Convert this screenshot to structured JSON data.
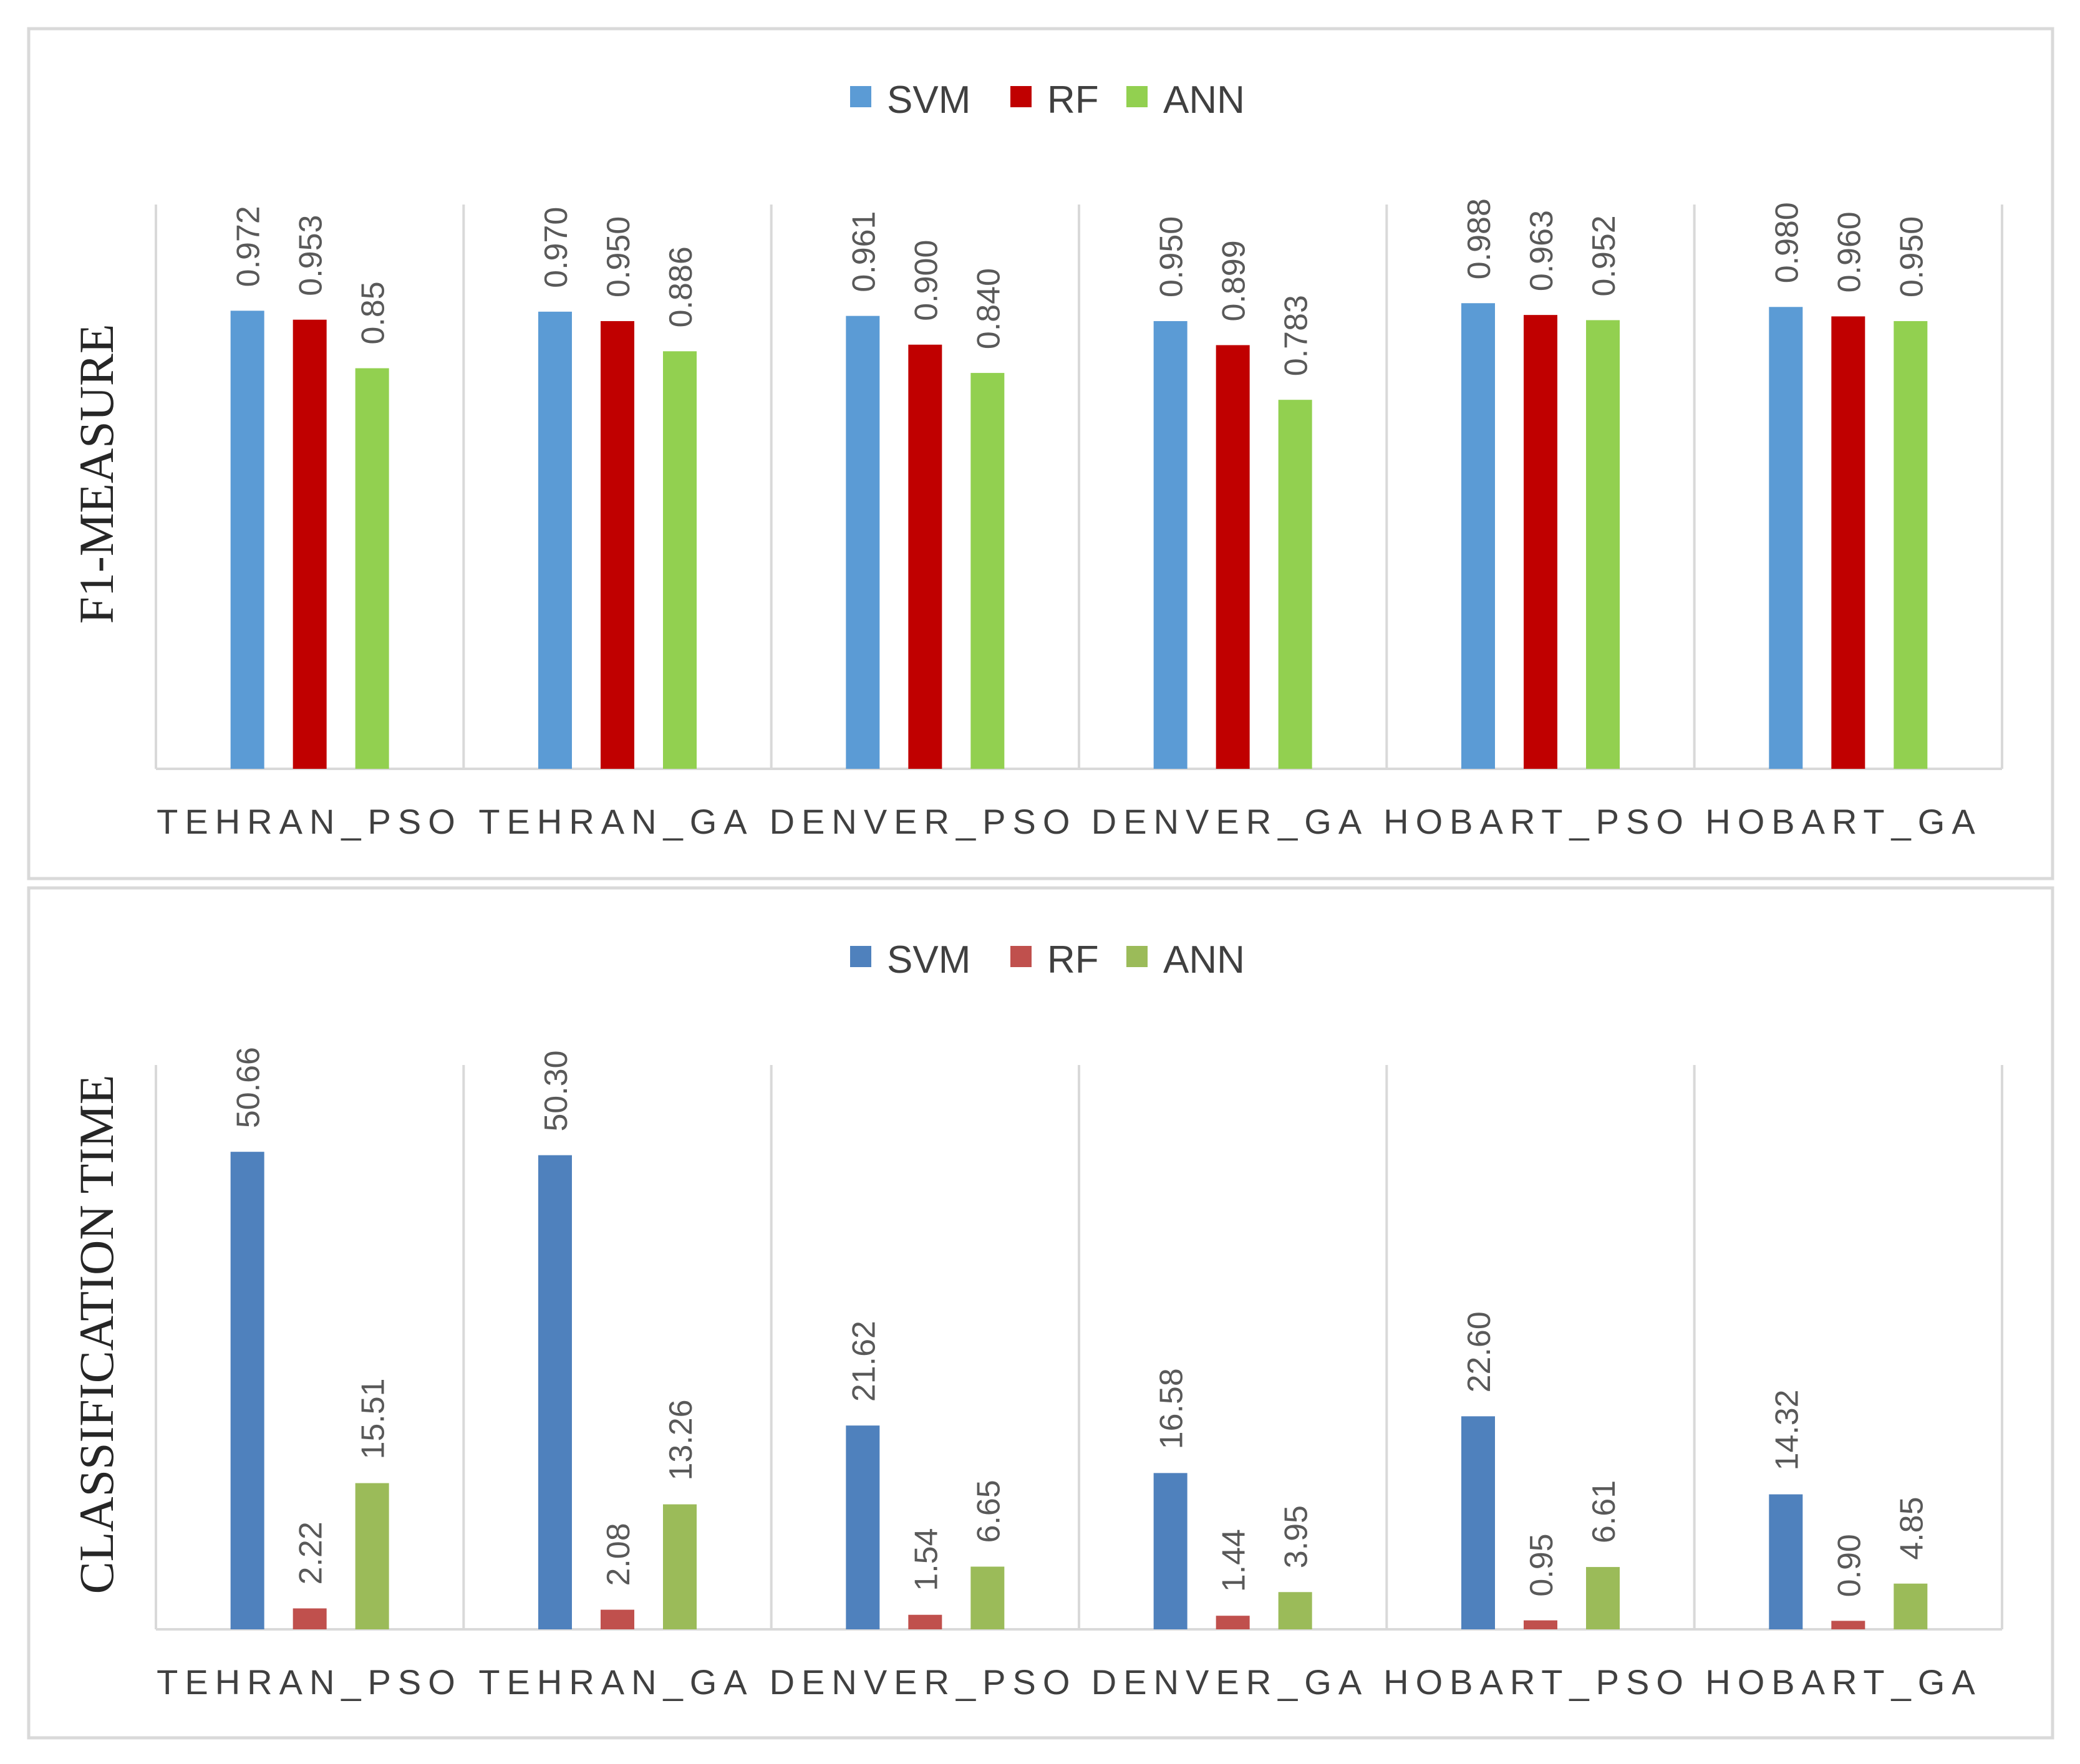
{
  "chart_data": [
    {
      "type": "bar",
      "title": "",
      "ylabel": "F1-MEASURE",
      "xlabel": "",
      "categories": [
        "TEHRAN_PSO",
        "TEHRAN_GA",
        "DENVER_PSO",
        "DENVER_GA",
        "HOBART_PSO",
        "HOBART_GA"
      ],
      "series": [
        {
          "name": "SVM",
          "color": "#5B9BD5",
          "values": [
            0.972,
            0.97,
            0.961,
            0.95,
            0.988,
            0.98
          ],
          "labels": [
            "0.972",
            "0.970",
            "0.961",
            "0.950",
            "0.988",
            "0.980"
          ]
        },
        {
          "name": "RF",
          "color": "#C00000",
          "values": [
            0.953,
            0.95,
            0.9,
            0.899,
            0.963,
            0.96
          ],
          "labels": [
            "0.953",
            "0.950",
            "0.900",
            "0.899",
            "0.963",
            "0.960"
          ]
        },
        {
          "name": "ANN",
          "color": "#92D050",
          "values": [
            0.85,
            0.886,
            0.84,
            0.783,
            0.952,
            0.95
          ],
          "labels": [
            "0.85",
            "0.886",
            "0.840",
            "0.783",
            "0.952",
            "0.950"
          ]
        }
      ],
      "ylim": [
        0,
        1.2
      ],
      "legend": "top-center",
      "grid": false
    },
    {
      "type": "bar",
      "title": "",
      "ylabel": "CLASSIFICATION TIME",
      "xlabel": "",
      "categories": [
        "TEHRAN_PSO",
        "TEHRAN_GA",
        "DENVER_PSO",
        "DENVER_GA",
        "HOBART_PSO",
        "HOBART_GA"
      ],
      "series": [
        {
          "name": "SVM",
          "color": "#4F81BD",
          "values": [
            50.66,
            50.3,
            21.62,
            16.58,
            22.6,
            14.32
          ],
          "labels": [
            "50.66",
            "50.30",
            "21.62",
            "16.58",
            "22.60",
            "14.32"
          ]
        },
        {
          "name": "RF",
          "color": "#C0504D",
          "values": [
            2.22,
            2.08,
            1.54,
            1.44,
            0.95,
            0.9
          ],
          "labels": [
            "2.22",
            "2.08",
            "1.54",
            "1.44",
            "0.95",
            "0.90"
          ]
        },
        {
          "name": "ANN",
          "color": "#9BBB59",
          "values": [
            15.51,
            13.26,
            6.65,
            3.95,
            6.61,
            4.85
          ],
          "labels": [
            "15.51",
            "13.26",
            "6.65",
            "3.95",
            "6.61",
            "4.85"
          ]
        }
      ],
      "ylim": [
        0,
        60
      ],
      "legend": "top-center",
      "grid": false
    }
  ]
}
